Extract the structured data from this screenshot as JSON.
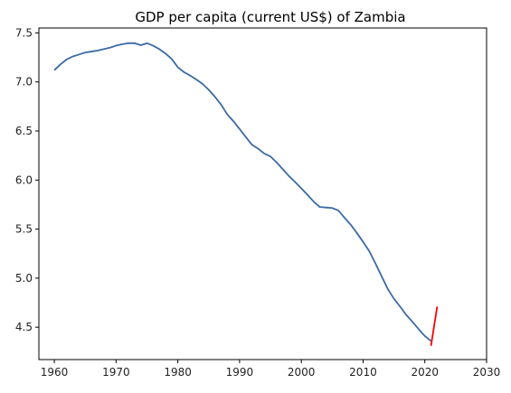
{
  "chart_data": {
    "type": "line",
    "title": "GDP per capita (current US$) of Zambia",
    "xlabel": "",
    "ylabel": "",
    "xlim": [
      1957.5,
      2030
    ],
    "ylim": [
      4.17,
      7.55
    ],
    "xticks": [
      1960,
      1970,
      1980,
      1990,
      2000,
      2010,
      2020,
      2030
    ],
    "yticks": [
      4.5,
      5.0,
      5.5,
      6.0,
      6.5,
      7.0,
      7.5
    ],
    "ytick_labels": [
      "4.5",
      "5.0",
      "5.5",
      "6.0",
      "6.5",
      "7.0",
      "7.5"
    ],
    "grid": false,
    "legend": false,
    "series": [
      {
        "color": "#3a6aa5",
        "x": [
          1960,
          1961,
          1962,
          1963,
          1964,
          1965,
          1966,
          1967,
          1968,
          1969,
          1970,
          1971,
          1972,
          1973,
          1974,
          1975,
          1976,
          1977,
          1978,
          1979,
          1980,
          1981,
          1982,
          1983,
          1984,
          1985,
          1986,
          1987,
          1988,
          1989,
          1990,
          1991,
          1992,
          1993,
          1994,
          1995,
          1996,
          1997,
          1998,
          1999,
          2000,
          2001,
          2002,
          2003,
          2004,
          2005,
          2006,
          2007,
          2008,
          2009,
          2010,
          2011,
          2012,
          2013,
          2014,
          2015,
          2016,
          2017,
          2018,
          2019,
          2020,
          2021
        ],
        "y": [
          7.12,
          7.18,
          7.23,
          7.26,
          7.28,
          7.3,
          7.31,
          7.32,
          7.335,
          7.35,
          7.37,
          7.385,
          7.395,
          7.395,
          7.375,
          7.395,
          7.37,
          7.335,
          7.29,
          7.235,
          7.15,
          7.1,
          7.065,
          7.025,
          6.98,
          6.92,
          6.85,
          6.77,
          6.67,
          6.6,
          6.52,
          6.44,
          6.36,
          6.32,
          6.27,
          6.24,
          6.18,
          6.11,
          6.04,
          5.98,
          5.915,
          5.85,
          5.78,
          5.725,
          5.72,
          5.715,
          5.69,
          5.615,
          5.545,
          5.46,
          5.37,
          5.275,
          5.15,
          5.02,
          4.89,
          4.79,
          4.71,
          4.625,
          4.555,
          4.48,
          4.41,
          4.36
        ]
      },
      {
        "color": "#ff0000",
        "x": [
          2021,
          2022
        ],
        "y": [
          4.31,
          4.71
        ]
      }
    ]
  }
}
